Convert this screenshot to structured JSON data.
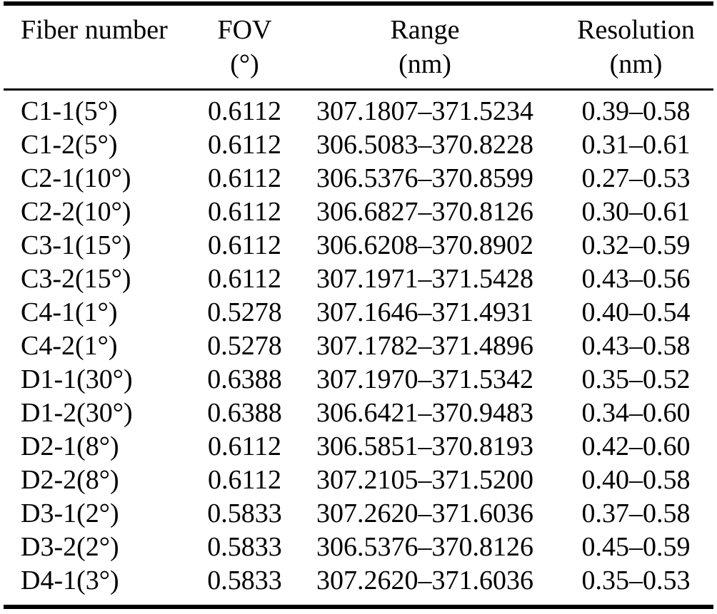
{
  "colors": {
    "text": "#000000",
    "background": "#ffffff",
    "rule": "#000000"
  },
  "table": {
    "columns": [
      {
        "label": "Fiber number",
        "unit": ""
      },
      {
        "label": "FOV",
        "unit": "(°)"
      },
      {
        "label": "Range",
        "unit": "(nm)"
      },
      {
        "label": "Resolution",
        "unit": "(nm)"
      }
    ],
    "rows": [
      [
        "C1-1(5°)",
        "0.6112",
        "307.1807–371.5234",
        "0.39–0.58"
      ],
      [
        "C1-2(5°)",
        "0.6112",
        "306.5083–370.8228",
        "0.31–0.61"
      ],
      [
        "C2-1(10°)",
        "0.6112",
        "306.5376–370.8599",
        "0.27–0.53"
      ],
      [
        "C2-2(10°)",
        "0.6112",
        "306.6827–370.8126",
        "0.30–0.61"
      ],
      [
        "C3-1(15°)",
        "0.6112",
        "306.6208–370.8902",
        "0.32–0.59"
      ],
      [
        "C3-2(15°)",
        "0.6112",
        "307.1971–371.5428",
        "0.43–0.56"
      ],
      [
        "C4-1(1°)",
        "0.5278",
        "307.1646–371.4931",
        "0.40–0.54"
      ],
      [
        "C4-2(1°)",
        "0.5278",
        "307.1782–371.4896",
        "0.43–0.58"
      ],
      [
        "D1-1(30°)",
        "0.6388",
        "307.1970–371.5342",
        "0.35–0.52"
      ],
      [
        "D1-2(30°)",
        "0.6388",
        "306.6421–370.9483",
        "0.34–0.60"
      ],
      [
        "D2-1(8°)",
        "0.6112",
        "306.5851–370.8193",
        "0.42–0.60"
      ],
      [
        "D2-2(8°)",
        "0.6112",
        "307.2105–371.5200",
        "0.40–0.58"
      ],
      [
        "D3-1(2°)",
        "0.5833",
        "307.2620–371.6036",
        "0.37–0.58"
      ],
      [
        "D3-2(2°)",
        "0.5833",
        "306.5376–370.8126",
        "0.45–0.59"
      ],
      [
        "D4-1(3°)",
        "0.5833",
        "307.2620–371.6036",
        "0.35–0.53"
      ]
    ],
    "cell_names": [
      "fiber-number-cell",
      "fov-cell",
      "range-cell",
      "resolution-cell"
    ]
  }
}
